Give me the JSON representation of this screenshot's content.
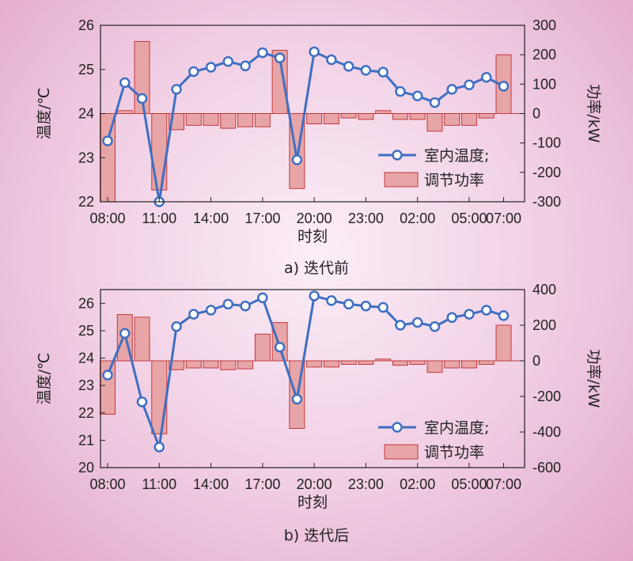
{
  "colors": {
    "line": "#3f6fc1",
    "bar_fill": "#e8a5a7",
    "bar_stroke": "#c0393c"
  },
  "chart_data": [
    {
      "type": "bar+line",
      "caption": "a) 迭代前",
      "xlabel": "时刻",
      "ylabel_left": "温度/℃",
      "ylabel_right": "功率/kW",
      "x_ticks": [
        "08:00",
        "11:00",
        "14:00",
        "17:00",
        "20:00",
        "23:00",
        "02:00",
        "05:00",
        "07:00"
      ],
      "x_tick_hours": [
        0,
        3,
        6,
        9,
        12,
        15,
        18,
        21,
        23
      ],
      "y_left_ticks": [
        22,
        23,
        24,
        25,
        26
      ],
      "y_left_range": [
        22,
        26
      ],
      "y_right_ticks": [
        -300,
        -200,
        -100,
        0,
        100,
        200,
        300
      ],
      "y_right_range": [
        -300,
        300
      ],
      "legend": {
        "position": "bottom-right",
        "line": "室内温度;",
        "bar": "调节功率"
      },
      "series": [
        {
          "name": "室内温度;",
          "axis": "left",
          "values": [
            23.38,
            24.7,
            24.34,
            22.0,
            24.55,
            24.95,
            25.05,
            25.18,
            25.08,
            25.38,
            25.26,
            22.95,
            25.4,
            25.22,
            25.07,
            24.98,
            24.94,
            24.5,
            24.4,
            24.25,
            24.55,
            24.65,
            24.82,
            24.62
          ]
        },
        {
          "name": "调节功率",
          "axis": "right",
          "values": [
            -300,
            10,
            245,
            -260,
            -55,
            -40,
            -40,
            -50,
            -45,
            -45,
            215,
            -255,
            -35,
            -35,
            -15,
            -20,
            10,
            -20,
            -20,
            -60,
            -40,
            -40,
            -15,
            200
          ]
        }
      ]
    },
    {
      "type": "bar+line",
      "caption": "b) 迭代后",
      "xlabel": "时刻",
      "ylabel_left": "温度/℃",
      "ylabel_right": "功率/kW",
      "x_ticks": [
        "08:00",
        "11:00",
        "14:00",
        "17:00",
        "20:00",
        "23:00",
        "02:00",
        "05:00",
        "07:00"
      ],
      "x_tick_hours": [
        0,
        3,
        6,
        9,
        12,
        15,
        18,
        21,
        23
      ],
      "y_left_ticks": [
        20,
        21,
        22,
        23,
        24,
        25,
        26
      ],
      "y_left_range": [
        20,
        26.5
      ],
      "y_right_ticks": [
        -600,
        -400,
        -200,
        0,
        200,
        400
      ],
      "y_right_range": [
        -600,
        400
      ],
      "legend": {
        "position": "bottom-right",
        "line": "室内温度;",
        "bar": "调节功率"
      },
      "series": [
        {
          "name": "室内温度;",
          "axis": "left",
          "values": [
            23.38,
            24.9,
            22.4,
            20.75,
            25.15,
            25.6,
            25.75,
            25.97,
            25.9,
            26.2,
            24.4,
            22.5,
            26.27,
            26.1,
            25.97,
            25.9,
            25.85,
            25.2,
            25.3,
            25.15,
            25.48,
            25.6,
            25.75,
            25.55
          ]
        },
        {
          "name": "调节功率",
          "axis": "right",
          "values": [
            -300,
            260,
            245,
            -410,
            -50,
            -40,
            -40,
            -50,
            -45,
            150,
            215,
            -380,
            -35,
            -35,
            -20,
            -20,
            10,
            -25,
            -20,
            -65,
            -40,
            -40,
            -20,
            200
          ]
        }
      ]
    }
  ]
}
